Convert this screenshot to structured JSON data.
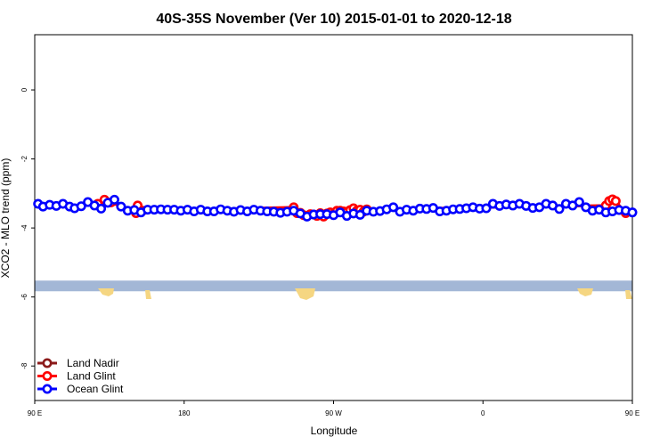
{
  "chart_data": {
    "type": "line",
    "title": "40S-35S November (Ver 10)   2015-01-01 to 2020-12-18",
    "xlabel": "Longitude",
    "ylabel": "XCO2 - MLO trend (ppm)",
    "xlim": [
      90,
      450
    ],
    "ylim": [
      -9,
      1.6
    ],
    "x_ticks": [
      {
        "value": 90,
        "label": "90 E"
      },
      {
        "value": 180,
        "label": "180"
      },
      {
        "value": 270,
        "label": "90 W"
      },
      {
        "value": 360,
        "label": "0"
      },
      {
        "value": 450,
        "label": "90 E"
      },
      {
        "value": 540,
        "label": "180"
      }
    ],
    "y_ticks": [
      {
        "value": 0,
        "label": "0"
      },
      {
        "value": -2,
        "label": "-2"
      },
      {
        "value": -4,
        "label": "-4"
      },
      {
        "value": -6,
        "label": "-6"
      },
      {
        "value": -8,
        "label": "-8"
      }
    ],
    "grid": false,
    "legend_position": "bottom-left",
    "series": [
      {
        "name": "Land Nadir",
        "color": "#8b1a1a",
        "x": [],
        "y": []
      },
      {
        "name": "Land Glint",
        "color": "#ff0000",
        "x": [
          128,
          132,
          136,
          151,
          152,
          155,
          246,
          248,
          250,
          252,
          254,
          256,
          258,
          260,
          262,
          264,
          266,
          268,
          270,
          272,
          274,
          276,
          278,
          280,
          282,
          284,
          286,
          288,
          290,
          434,
          436,
          438,
          440,
          446
        ],
        "y": [
          -3.3,
          -3.18,
          -3.26,
          -3.57,
          -3.35,
          -3.5,
          -3.4,
          -3.57,
          -3.56,
          -3.63,
          -3.66,
          -3.6,
          -3.61,
          -3.65,
          -3.57,
          -3.67,
          -3.58,
          -3.55,
          -3.6,
          -3.5,
          -3.5,
          -3.52,
          -3.53,
          -3.48,
          -3.43,
          -3.5,
          -3.47,
          -3.53,
          -3.46,
          -3.35,
          -3.22,
          -3.17,
          -3.22,
          -3.57
        ]
      },
      {
        "name": "Ocean Glint",
        "color": "#0000ff",
        "x": [
          92,
          95,
          99,
          103,
          107,
          111,
          114,
          118,
          122,
          126,
          130,
          134,
          138,
          142,
          146,
          150,
          154,
          158,
          162,
          166,
          170,
          174,
          178,
          182,
          186,
          190,
          194,
          198,
          202,
          206,
          210,
          214,
          218,
          222,
          226,
          230,
          234,
          238,
          242,
          246,
          250,
          254,
          258,
          262,
          266,
          270,
          274,
          278,
          282,
          286,
          290,
          294,
          298,
          302,
          306,
          310,
          314,
          318,
          322,
          326,
          330,
          334,
          338,
          342,
          346,
          350,
          354,
          358,
          362,
          366,
          370,
          374,
          378,
          382,
          386,
          390,
          394,
          398,
          402,
          406,
          410,
          414,
          418,
          422,
          426,
          430,
          434,
          438,
          442,
          446,
          450
        ],
        "y": [
          -3.3,
          -3.38,
          -3.33,
          -3.36,
          -3.3,
          -3.38,
          -3.43,
          -3.37,
          -3.25,
          -3.35,
          -3.44,
          -3.27,
          -3.18,
          -3.38,
          -3.5,
          -3.48,
          -3.55,
          -3.47,
          -3.47,
          -3.46,
          -3.47,
          -3.47,
          -3.5,
          -3.47,
          -3.52,
          -3.47,
          -3.52,
          -3.52,
          -3.46,
          -3.5,
          -3.53,
          -3.48,
          -3.52,
          -3.47,
          -3.5,
          -3.52,
          -3.53,
          -3.56,
          -3.53,
          -3.5,
          -3.58,
          -3.67,
          -3.61,
          -3.6,
          -3.6,
          -3.63,
          -3.55,
          -3.65,
          -3.58,
          -3.62,
          -3.5,
          -3.53,
          -3.51,
          -3.46,
          -3.4,
          -3.53,
          -3.47,
          -3.5,
          -3.44,
          -3.45,
          -3.42,
          -3.52,
          -3.5,
          -3.46,
          -3.45,
          -3.43,
          -3.4,
          -3.44,
          -3.43,
          -3.3,
          -3.36,
          -3.32,
          -3.35,
          -3.3,
          -3.36,
          -3.42,
          -3.4,
          -3.3,
          -3.35,
          -3.45,
          -3.3,
          -3.35,
          -3.25,
          -3.4,
          -3.5,
          -3.47,
          -3.55,
          -3.52,
          -3.48,
          -3.5,
          -3.55
        ]
      }
    ],
    "map_strip": {
      "y_center": -5.68,
      "ocean_color": "#a3b7d6",
      "land_color": "#f5d682"
    }
  }
}
